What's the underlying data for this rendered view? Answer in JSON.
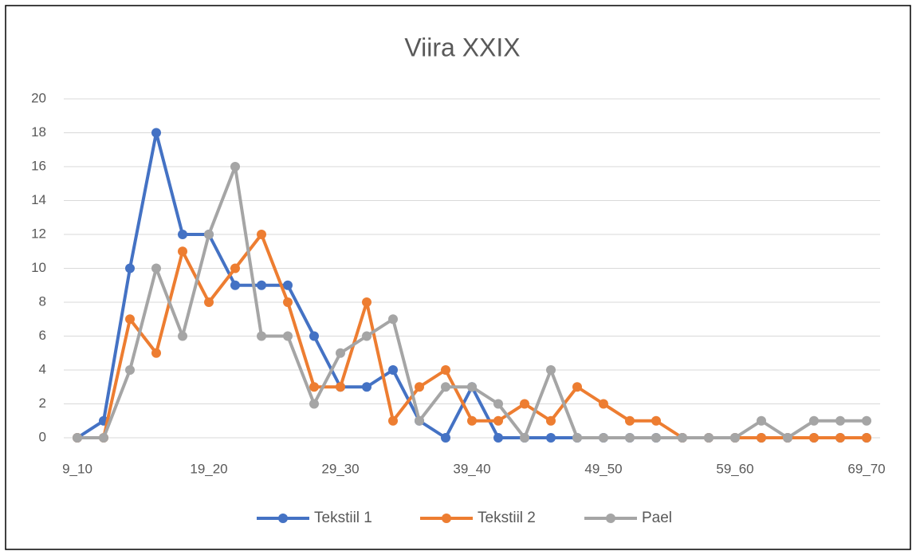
{
  "chart_data": {
    "type": "line",
    "title": "Viira XXIX",
    "categories": [
      "9_10",
      null,
      null,
      null,
      null,
      "19_20",
      null,
      null,
      null,
      null,
      "29_30",
      null,
      null,
      null,
      null,
      "39_40",
      null,
      null,
      null,
      null,
      "49_50",
      null,
      null,
      null,
      null,
      "59_60",
      null,
      null,
      null,
      null,
      "69_70"
    ],
    "series": [
      {
        "name": "Tekstiil 1",
        "color": "#4472c4",
        "values": [
          0,
          1,
          10,
          18,
          12,
          12,
          9,
          9,
          9,
          6,
          3,
          3,
          4,
          1,
          0,
          3,
          0,
          0,
          0,
          0,
          0,
          0,
          0,
          0,
          0,
          0,
          0,
          0,
          0,
          0,
          0
        ]
      },
      {
        "name": "Tekstiil 2",
        "color": "#ed7d31",
        "values": [
          0,
          0,
          7,
          5,
          11,
          8,
          10,
          12,
          8,
          3,
          3,
          8,
          1,
          3,
          4,
          1,
          1,
          2,
          1,
          3,
          2,
          1,
          1,
          0,
          0,
          0,
          0,
          0,
          0,
          0,
          0
        ]
      },
      {
        "name": "Pael",
        "color": "#a5a5a5",
        "values": [
          0,
          0,
          4,
          10,
          6,
          12,
          16,
          6,
          6,
          2,
          5,
          6,
          7,
          1,
          3,
          3,
          2,
          0,
          4,
          0,
          0,
          0,
          0,
          0,
          0,
          0,
          1,
          0,
          1,
          1,
          1
        ]
      }
    ],
    "ylim": [
      0,
      20
    ],
    "yticks": [
      0,
      2,
      4,
      6,
      8,
      10,
      12,
      14,
      16,
      18,
      20
    ],
    "grid": true,
    "legend": "bottom"
  }
}
